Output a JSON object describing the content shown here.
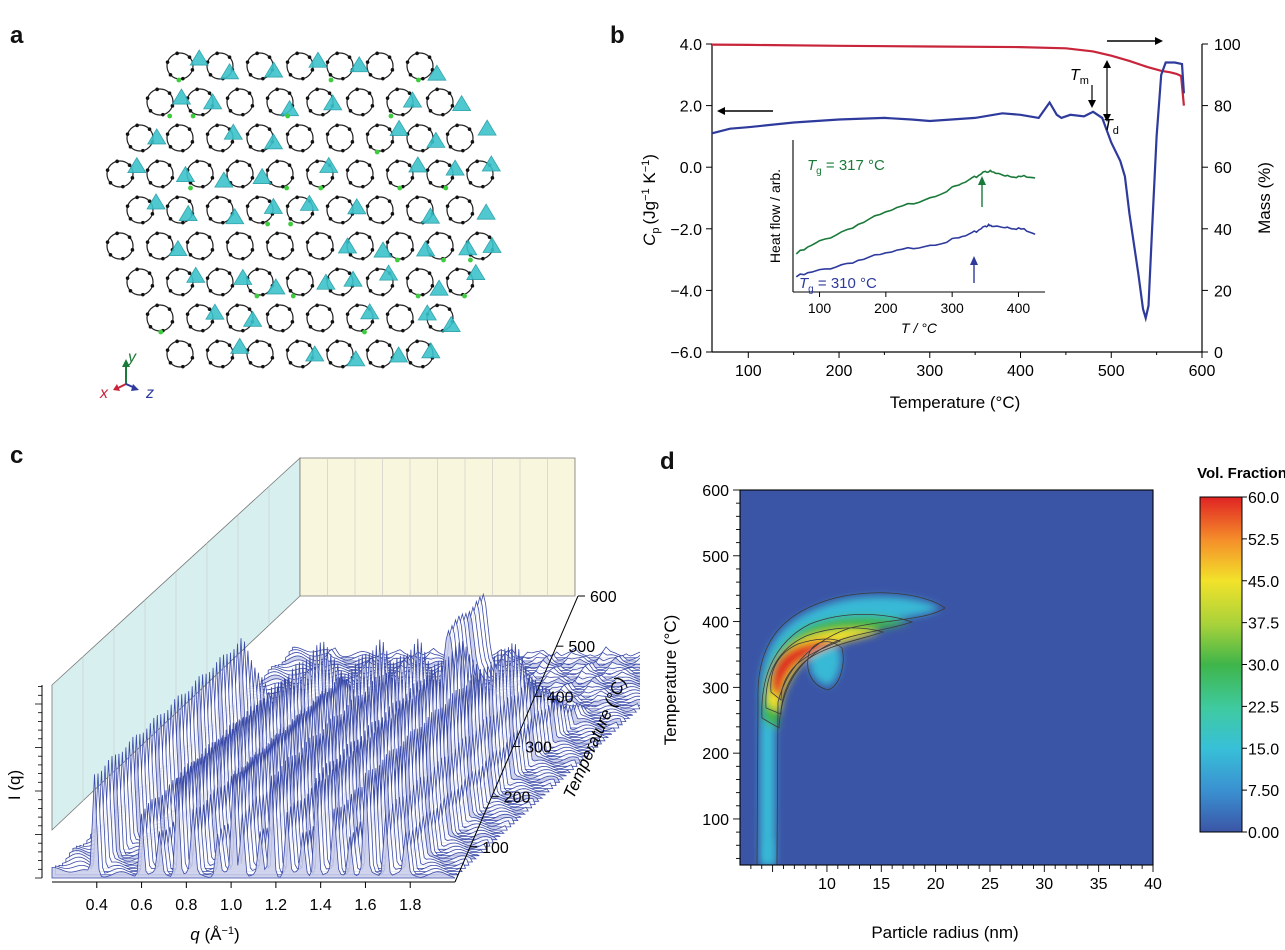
{
  "panels": {
    "a": "a",
    "b": "b",
    "c": "c",
    "d": "d"
  },
  "colors": {
    "mass_red": "#c8243a",
    "cp_blue": "#2e3a9c",
    "inset_green": "#1a7a3a",
    "inset_blue": "#2e3a9c",
    "crystal_cyan": "#3cc3cc",
    "crystal_bond": "#222222",
    "crystal_green": "#3dcc3d",
    "wall_cyan": "#d8efef",
    "wall_yellow": "#f8f6dc",
    "waterfall_blue": "#3a4aa8",
    "heatmap_bg": "#3b55a6"
  },
  "panel_a": {
    "axes": {
      "y": "y",
      "x": "x",
      "z": "z"
    },
    "axis_colors": {
      "y": "#1a7a3a",
      "x": "#c8243a",
      "z": "#2e3a9c"
    }
  },
  "chart_data": [
    {
      "panel": "b",
      "type": "line",
      "title": "",
      "xlabel": "Temperature (°C)",
      "ylabel_left_main": "C",
      "ylabel_left_sub": "p",
      "ylabel_left_unit": "(Jg",
      "ylabel_left_unit_sup1": "−1",
      "ylabel_left_unit_mid": " K",
      "ylabel_left_unit_sup2": "−1",
      "ylabel_left_unit_end": ")",
      "ylabel_right": "Mass (%)",
      "xlim": [
        60,
        600
      ],
      "ylim_left": [
        -6.0,
        4.0
      ],
      "ylim_right": [
        0,
        100
      ],
      "xticks": [
        "100",
        "200",
        "300",
        "400",
        "500",
        "600"
      ],
      "yticks_left": [
        "4.0",
        "2.0",
        "0.0",
        "−2.0",
        "−4.0",
        "−6.0"
      ],
      "yticks_right": [
        "100",
        "80",
        "60",
        "40",
        "20",
        "0"
      ],
      "series": [
        {
          "axis": "right",
          "x": [
            60,
            100,
            200,
            300,
            400,
            450,
            480,
            500,
            520,
            540,
            555,
            565,
            572,
            577,
            580
          ],
          "y": [
            99.8,
            99.7,
            99.4,
            99.2,
            99.0,
            98.6,
            97.6,
            96.2,
            94.5,
            92.5,
            91.3,
            90.8,
            90.3,
            89.6,
            80.0
          ]
        },
        {
          "axis": "left",
          "x": [
            60,
            80,
            100,
            150,
            200,
            250,
            280,
            300,
            350,
            380,
            400,
            420,
            432,
            440,
            445,
            455,
            470,
            480,
            490,
            500,
            510,
            515,
            520,
            530,
            535,
            538,
            541,
            545,
            550,
            555,
            560,
            570,
            578,
            580
          ],
          "y": [
            1.1,
            1.25,
            1.3,
            1.45,
            1.55,
            1.6,
            1.55,
            1.5,
            1.6,
            1.75,
            1.7,
            1.6,
            2.1,
            1.7,
            1.6,
            1.7,
            1.65,
            1.8,
            1.6,
            0.8,
            0.2,
            -0.3,
            -1.5,
            -3.5,
            -4.6,
            -4.9,
            -4.5,
            -2.0,
            1.0,
            3.0,
            3.4,
            3.4,
            3.35,
            2.4
          ]
        }
      ],
      "annotations": {
        "tm": "T",
        "tm_sub": "m",
        "td": "T",
        "td_sub": "d"
      },
      "inset": {
        "xlabel": "T / °C",
        "ylabel": "Heat flow / arb.",
        "xlim": [
          60,
          440
        ],
        "xticks": [
          "100",
          "200",
          "300",
          "400"
        ],
        "label_green_main": "T",
        "label_green_sub": "g",
        "label_green_rest": " = 317 °C",
        "label_blue_main": "T",
        "label_blue_sub": "g",
        "label_blue_rest": " = 310 °C",
        "series": [
          {
            "x": [
              65,
              100,
              150,
              200,
              250,
              300,
              330,
              350,
              365,
              380,
              400,
              425
            ],
            "y": [
              0.25,
              0.33,
              0.43,
              0.52,
              0.6,
              0.68,
              0.74,
              0.8,
              0.78,
              0.77,
              0.76,
              0.75
            ]
          },
          {
            "x": [
              65,
              100,
              150,
              200,
              250,
              300,
              330,
              350,
              360,
              380,
              400,
              425
            ],
            "y": [
              0.1,
              0.14,
              0.2,
              0.25,
              0.3,
              0.34,
              0.38,
              0.44,
              0.43,
              0.43,
              0.42,
              0.38
            ]
          }
        ]
      }
    },
    {
      "panel": "c",
      "type": "area",
      "title": "",
      "xlabel": "q (Å−1)",
      "xlabel_main": "q",
      "xlabel_unit": " (Å",
      "xlabel_sup": "−1",
      "xlabel_end": ")",
      "ylabel": "I (q)",
      "zlabel": "Temperature (°C)",
      "xticks": [
        "0.4",
        "0.6",
        "0.8",
        "1.0",
        "1.2",
        "1.4",
        "1.6",
        "1.8"
      ],
      "zticks": [
        "100",
        "200",
        "300",
        "400",
        "500",
        "600"
      ],
      "peak_q": [
        0.39,
        0.6,
        0.68,
        0.76,
        0.83,
        0.94,
        1.01,
        1.05,
        1.13,
        1.18,
        1.25,
        1.32,
        1.38,
        1.46,
        1.53,
        1.6,
        1.69,
        1.78
      ]
    },
    {
      "panel": "d",
      "type": "heatmap",
      "title": "",
      "xlabel": "Particle radius (nm)",
      "ylabel": "Temperature (°C)",
      "colorbar_title": "Vol. Fraction",
      "xlim": [
        2,
        40
      ],
      "ylim": [
        30,
        600
      ],
      "xticks": [
        "10",
        "15",
        "20",
        "25",
        "30",
        "35",
        "40"
      ],
      "yticks": [
        "100",
        "200",
        "300",
        "400",
        "500",
        "600"
      ],
      "colorbar_ticks": [
        "60.0",
        "52.5",
        "45.0",
        "37.5",
        "30.0",
        "22.5",
        "15.0",
        "7.50",
        "0.00"
      ],
      "colorbar_range": [
        0,
        60
      ]
    }
  ]
}
